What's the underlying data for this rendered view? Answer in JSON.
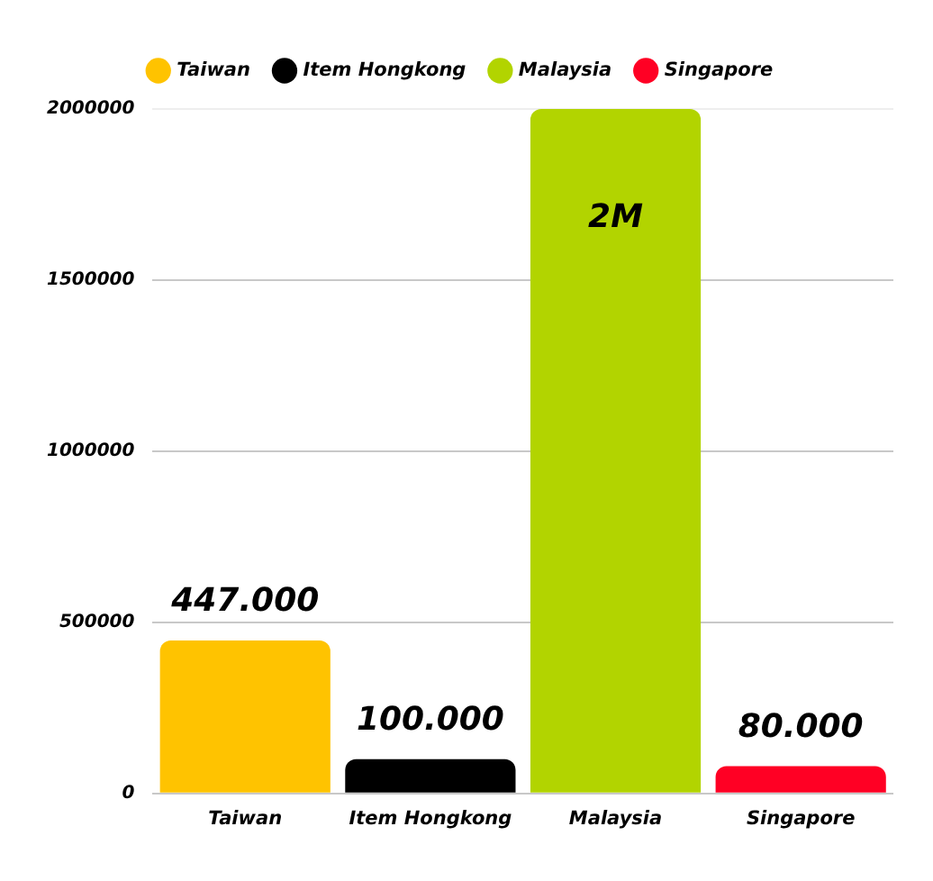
{
  "chart_data": {
    "type": "bar",
    "categories": [
      "Taiwan",
      "Item Hongkong",
      "Malaysia",
      "Singapore"
    ],
    "series": [
      {
        "name": "Taiwan",
        "color": "#ffc300",
        "values": [
          447000,
          null,
          null,
          null
        ],
        "value_labels": [
          "447.000",
          null,
          null,
          null
        ]
      },
      {
        "name": "Item Hongkong",
        "color": "#000000",
        "values": [
          null,
          100000,
          null,
          null
        ],
        "value_labels": [
          null,
          "100.000",
          null,
          null
        ]
      },
      {
        "name": "Malaysia",
        "color": "#b2d400",
        "values": [
          null,
          null,
          2000000,
          null
        ],
        "value_labels": [
          null,
          null,
          "2M",
          null
        ]
      },
      {
        "name": "Singapore",
        "color": "#ff0024",
        "values": [
          null,
          null,
          null,
          80000
        ],
        "value_labels": [
          null,
          null,
          null,
          "80.000"
        ]
      }
    ],
    "ylim": [
      0,
      2000000
    ],
    "yticks": [
      0,
      500000,
      1000000,
      1500000,
      2000000
    ],
    "grid": "y",
    "legend": "top"
  }
}
